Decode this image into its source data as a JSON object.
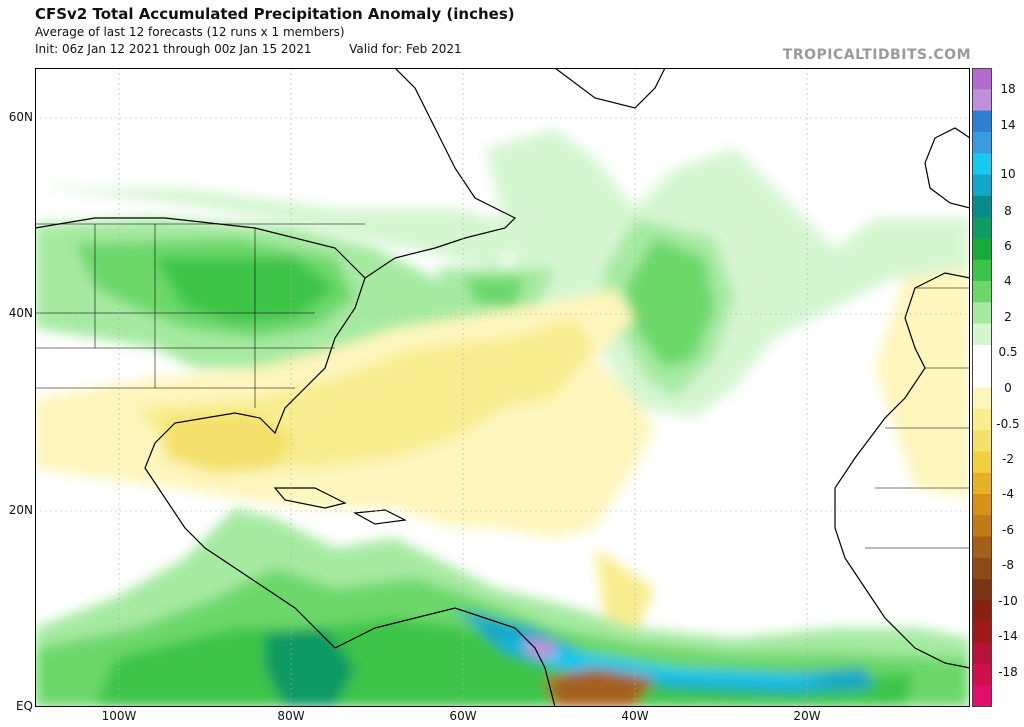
{
  "header": {
    "title": "CFSv2 Total Accumulated Precipitation Anomaly (inches)",
    "subtitle": "Average of last 12 forecasts (12 runs x 1 members)",
    "init": "Init: 06z Jan 12 2021 through 00z Jan 15 2021",
    "valid": "Valid for: Feb 2021"
  },
  "brand": "TROPICALTIDBITS.COM",
  "map": {
    "lat_labels": [
      "60N",
      "40N",
      "20N",
      "EQ"
    ],
    "lon_labels": [
      "100W",
      "80W",
      "60W",
      "40W",
      "20W"
    ]
  },
  "colorbar": {
    "labels": [
      "18",
      "14",
      "10",
      "8",
      "6",
      "4",
      "2",
      "0.5",
      "0",
      "-0.5",
      "-2",
      "-4",
      "-6",
      "-8",
      "-10",
      "-14",
      "-18"
    ],
    "colors": [
      "#b46bd0",
      "#c28fdc",
      "#2e7fd0",
      "#3a9be0",
      "#18c8f0",
      "#12a6c8",
      "#0a8a8a",
      "#109a64",
      "#1aaa3c",
      "#3cc44a",
      "#6cd86a",
      "#a6eaa2",
      "#d6f6d2",
      "#ffffff",
      "#ffffff",
      "#fdf6bd",
      "#f8ee90",
      "#f4e06a",
      "#f2cf40",
      "#e8b024",
      "#d69218",
      "#c07a18",
      "#a4601a",
      "#8c4a18",
      "#7a3414",
      "#8c2010",
      "#a01818",
      "#b8123a",
      "#d0104e",
      "#e0106a"
    ]
  }
}
